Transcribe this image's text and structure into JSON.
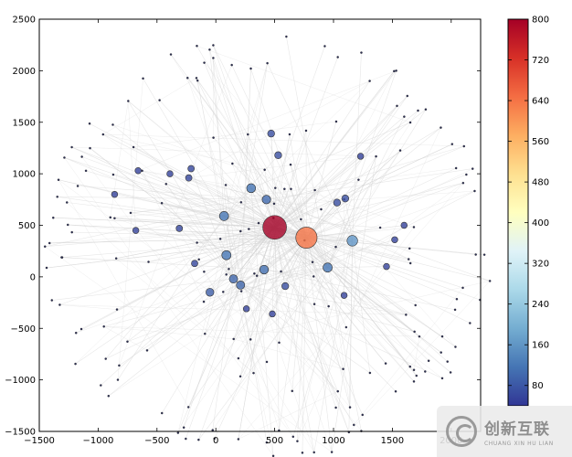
{
  "chart_data": {
    "type": "scatter",
    "subtype": "network-graph",
    "title": "",
    "xlabel": "",
    "ylabel": "",
    "xlim": [
      -1500,
      2250
    ],
    "ylim": [
      -1500,
      2500
    ],
    "xticks": [
      -1500,
      -1000,
      -500,
      0,
      500,
      1000,
      1500,
      2000
    ],
    "yticks": [
      -1500,
      -1000,
      -500,
      0,
      500,
      1000,
      1500,
      2000,
      2500
    ],
    "grid": false,
    "colorbar": {
      "min": 40,
      "max": 800,
      "ticks": [
        80,
        160,
        240,
        320,
        400,
        480,
        560,
        640,
        720,
        800
      ],
      "colormap": "RdYlBu_r",
      "placement": "right"
    },
    "edge_color": "#d4d4d4",
    "node_edge_color": "#333333",
    "nodes": [
      {
        "x": 500,
        "y": 480,
        "v": 800
      },
      {
        "x": 770,
        "y": 380,
        "v": 640
      },
      {
        "x": 70,
        "y": 590,
        "v": 120
      },
      {
        "x": 300,
        "y": 860,
        "v": 115
      },
      {
        "x": 430,
        "y": 750,
        "v": 105
      },
      {
        "x": 90,
        "y": 210,
        "v": 120
      },
      {
        "x": 410,
        "y": 70,
        "v": 110
      },
      {
        "x": 950,
        "y": 90,
        "v": 120
      },
      {
        "x": 1160,
        "y": 350,
        "v": 160
      },
      {
        "x": 150,
        "y": -20,
        "v": 100
      },
      {
        "x": 210,
        "y": -80,
        "v": 100
      },
      {
        "x": -50,
        "y": -150,
        "v": 90
      },
      {
        "x": 590,
        "y": -90,
        "v": 70
      },
      {
        "x": 470,
        "y": 1390,
        "v": 70
      },
      {
        "x": 530,
        "y": 1180,
        "v": 70
      },
      {
        "x": 1100,
        "y": 760,
        "v": 70
      },
      {
        "x": 1030,
        "y": 720,
        "v": 70
      },
      {
        "x": -230,
        "y": 960,
        "v": 60
      },
      {
        "x": -210,
        "y": 1050,
        "v": 60
      },
      {
        "x": -180,
        "y": 130,
        "v": 60
      },
      {
        "x": -310,
        "y": 470,
        "v": 60
      },
      {
        "x": -680,
        "y": 450,
        "v": 55
      },
      {
        "x": -390,
        "y": 1000,
        "v": 55
      },
      {
        "x": 260,
        "y": -310,
        "v": 55
      },
      {
        "x": 480,
        "y": -360,
        "v": 55
      },
      {
        "x": 1450,
        "y": 100,
        "v": 55
      },
      {
        "x": 1520,
        "y": 360,
        "v": 55
      },
      {
        "x": 1600,
        "y": 500,
        "v": 55
      },
      {
        "x": 1230,
        "y": 1170,
        "v": 55
      },
      {
        "x": 1090,
        "y": -180,
        "v": 55
      },
      {
        "x": -860,
        "y": 800,
        "v": 55
      },
      {
        "x": -660,
        "y": 1030,
        "v": 55
      }
    ]
  }
}
